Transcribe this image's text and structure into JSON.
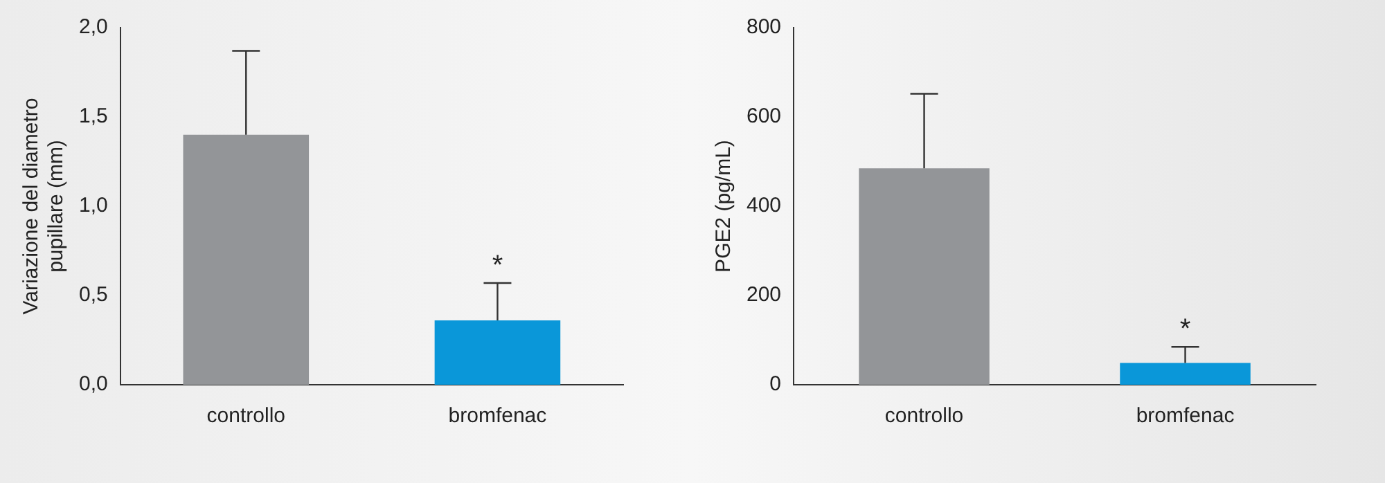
{
  "chart_data": [
    {
      "type": "bar",
      "ylabel": "Variazione del diametro pupillare (mm)",
      "categories": [
        "controllo",
        "bromfenac"
      ],
      "values": [
        1.4,
        0.36
      ],
      "colors": [
        "#939598",
        "#0a97d9"
      ],
      "errors": [
        [
          1.4,
          1.87
        ],
        [
          0.36,
          0.57
        ]
      ],
      "ylim": [
        0,
        2.0
      ],
      "yticks": [
        {
          "value": 0,
          "label": "0,0"
        },
        {
          "value": 0.5,
          "label": "0,5"
        },
        {
          "value": 1.0,
          "label": "1,0"
        },
        {
          "value": 1.5,
          "label": "1,5"
        },
        {
          "value": 2.0,
          "label": "2,0"
        }
      ],
      "grid": false,
      "legend": false,
      "annotations": [
        {
          "text": "*",
          "x": "bromfenac",
          "y": 0.57
        }
      ]
    },
    {
      "type": "bar",
      "ylabel": "PGE2 (pg/mL)",
      "categories": [
        "controllo",
        "bromfenac"
      ],
      "values": [
        485,
        49
      ],
      "colors": [
        "#939598",
        "#0a97d9"
      ],
      "errors": [
        [
          485,
          652
        ],
        [
          49,
          85
        ]
      ],
      "ylim": [
        0,
        800
      ],
      "yticks": [
        0,
        200,
        400,
        600,
        800
      ],
      "grid": false,
      "legend": false,
      "annotations": [
        {
          "text": "*",
          "x": "bromfenac",
          "y": 85
        }
      ]
    }
  ]
}
